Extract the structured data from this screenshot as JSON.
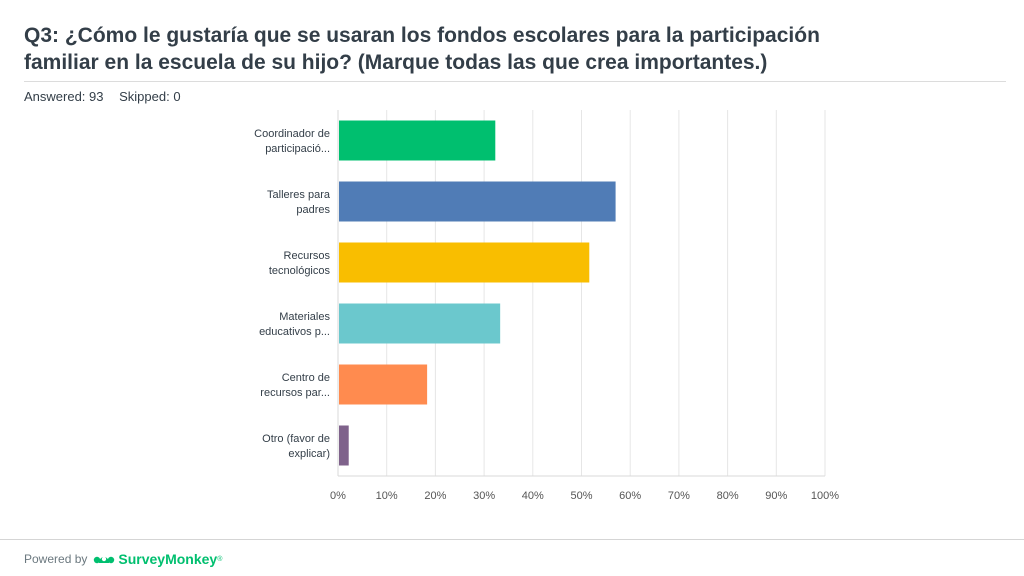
{
  "header": {
    "title_line1": "Q3: ¿Cómo le gustaría que se usaran los fondos escolares para la participación",
    "title_line2": "familiar en la escuela de su hijo? (Marque todas las que crea importantes.)",
    "answered": "Answered: 93",
    "skipped": "Skipped: 0"
  },
  "footer": {
    "powered_by": "Powered by",
    "brand": "SurveyMonkey",
    "trademark": "®",
    "logo_icon": "surveymonkey-logo-icon"
  },
  "chart_data": {
    "type": "bar",
    "orientation": "horizontal",
    "categories": [
      [
        "Coordinador de",
        "participació..."
      ],
      [
        "Talleres para",
        "padres"
      ],
      [
        "Recursos",
        "tecnológicos"
      ],
      [
        "Materiales",
        "educativos p..."
      ],
      [
        "Centro de",
        "recursos par..."
      ],
      [
        "Otro (favor de",
        "explicar)"
      ]
    ],
    "values": [
      32.3,
      57.0,
      51.6,
      33.3,
      18.3,
      2.2
    ],
    "colors": [
      "#00bf6f",
      "#507cb6",
      "#f9be00",
      "#6bc8cd",
      "#ff8b4f",
      "#7f628b"
    ],
    "xlim": [
      0,
      100
    ],
    "xticks": [
      0,
      10,
      20,
      30,
      40,
      50,
      60,
      70,
      80,
      90,
      100
    ],
    "tick_suffix": "%",
    "grid": true
  }
}
